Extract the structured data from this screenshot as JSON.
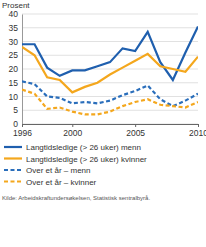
{
  "chart_data": {
    "type": "line",
    "y_label": "Prosent",
    "source": "Kilde: Arbeidskraftundersøkelsen, Statistisk sentralbyrå.",
    "x": [
      1996,
      1997,
      1998,
      1999,
      2000,
      2001,
      2002,
      2003,
      2004,
      2005,
      2006,
      2007,
      2008,
      2009,
      2010
    ],
    "xlim": [
      1996,
      2010
    ],
    "xticks": [
      1996,
      2000,
      2005,
      2010
    ],
    "ylim": [
      0,
      40
    ],
    "yticks": [
      0,
      5,
      10,
      15,
      20,
      25,
      30,
      35,
      40
    ],
    "grid": true,
    "legend": "bottom",
    "series": [
      {
        "name": "Langtidsledige (> 26 uker) menn",
        "color": "#1f5fae",
        "line_style": "solid",
        "values": [
          29,
          29,
          20.5,
          17.5,
          19.5,
          19.5,
          21,
          22.5,
          27.5,
          26.5,
          33.5,
          22.5,
          16,
          26,
          35.5
        ]
      },
      {
        "name": "Langtidsledige (> 26 uker) kvinner",
        "color": "#f4a71d",
        "line_style": "solid",
        "values": [
          28,
          25,
          17,
          16,
          11.5,
          13.5,
          15,
          18,
          20.5,
          23,
          25.5,
          21,
          20,
          19,
          24.5
        ]
      },
      {
        "name": "Over et år – menn",
        "color": "#2a6ebb",
        "line_style": "dashed",
        "values": [
          15.5,
          14.5,
          10,
          9.5,
          7.5,
          8,
          7.5,
          8.5,
          10.5,
          12,
          14,
          9,
          6.5,
          8.5,
          11
        ]
      },
      {
        "name": "Over et år – kvinner",
        "color": "#f4a71d",
        "line_style": "dashed",
        "values": [
          12.5,
          11,
          5.5,
          6,
          4.5,
          3.5,
          3.5,
          4.5,
          6.5,
          8,
          9,
          7,
          6.5,
          6,
          8
        ]
      }
    ]
  }
}
